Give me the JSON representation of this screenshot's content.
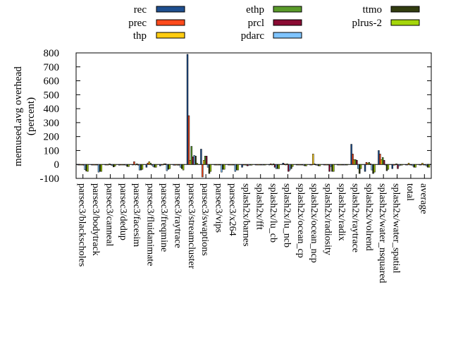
{
  "chart_data": {
    "type": "bar",
    "title": "",
    "xlabel": "",
    "ylabel": "memused.avg overhead",
    "ylabel2": "(percent)",
    "ylim": [
      -100,
      800
    ],
    "yticks": [
      -100,
      0,
      100,
      200,
      300,
      400,
      500,
      600,
      700,
      800
    ],
    "legend_position": "top",
    "categories": [
      "parsec3/blackscholes",
      "parsec3/bodytrack",
      "parsec3/canneal",
      "parsec3/dedup",
      "parsec3/facesim",
      "parsec3/fluidanimate",
      "parsec3/freqmine",
      "parsec3/raytrace",
      "parsec3/streamcluster",
      "parsec3/swaptions",
      "parsec3/vips",
      "parsec3/x264",
      "splash2x/barnes",
      "splash2x/fft",
      "splash2x/lu_cb",
      "splash2x/lu_ncb",
      "splash2x/ocean_cp",
      "splash2x/ocean_ncp",
      "splash2x/radiosity",
      "splash2x/radix",
      "splash2x/raytrace",
      "splash2x/volrend",
      "splash2x/water_nsquared",
      "splash2x/water_spatial",
      "total",
      "average"
    ],
    "series": [
      {
        "name": "rec",
        "color": "#1f4f8f",
        "values": [
          0,
          0,
          -3,
          -5,
          0,
          -20,
          -10,
          -5,
          790,
          110,
          0,
          0,
          -20,
          0,
          0,
          10,
          0,
          0,
          -3,
          -3,
          145,
          -50,
          100,
          -30,
          0,
          0
        ]
      },
      {
        "name": "prec",
        "color": "#ff4a1c",
        "values": [
          -2,
          0,
          0,
          0,
          20,
          10,
          0,
          -5,
          350,
          -90,
          0,
          0,
          0,
          0,
          5,
          5,
          0,
          0,
          -3,
          0,
          75,
          15,
          75,
          -5,
          0,
          0
        ]
      },
      {
        "name": "thp",
        "color": "#ffcc11",
        "values": [
          0,
          0,
          0,
          0,
          0,
          20,
          0,
          0,
          30,
          30,
          0,
          0,
          0,
          0,
          0,
          0,
          0,
          75,
          0,
          0,
          35,
          10,
          35,
          0,
          10,
          10
        ]
      },
      {
        "name": "ethp",
        "color": "#5a9b2a",
        "values": [
          -3,
          0,
          5,
          -3,
          5,
          10,
          5,
          -5,
          130,
          60,
          0,
          0,
          -5,
          0,
          5,
          5,
          -3,
          5,
          0,
          0,
          35,
          15,
          50,
          5,
          0,
          0
        ]
      },
      {
        "name": "prcl",
        "color": "#8a0b33",
        "values": [
          -5,
          0,
          0,
          0,
          -5,
          -5,
          5,
          -5,
          55,
          60,
          0,
          0,
          -10,
          0,
          -20,
          -50,
          -3,
          0,
          -50,
          0,
          30,
          5,
          30,
          -30,
          0,
          0
        ]
      },
      {
        "name": "pdarc",
        "color": "#7fc4ff",
        "values": [
          -37,
          -55,
          -8,
          -5,
          -40,
          -15,
          -45,
          -20,
          65,
          -20,
          -55,
          -50,
          -5,
          0,
          -30,
          -40,
          -5,
          -5,
          -15,
          0,
          -30,
          -40,
          0,
          -10,
          -10,
          -10
        ]
      },
      {
        "name": "ttmo",
        "color": "#323d10",
        "values": [
          -47,
          -50,
          -18,
          -15,
          -40,
          -20,
          -35,
          -30,
          60,
          -65,
          -35,
          -40,
          -5,
          0,
          -30,
          -30,
          -10,
          -10,
          -50,
          0,
          -65,
          -65,
          -45,
          -5,
          -20,
          -20
        ]
      },
      {
        "name": "plrus-2",
        "color": "#a5d60a",
        "values": [
          -50,
          -50,
          -12,
          -15,
          -35,
          -20,
          -30,
          -40,
          10,
          -50,
          -35,
          -40,
          -5,
          0,
          -30,
          -15,
          -10,
          -10,
          -50,
          0,
          -30,
          -55,
          -35,
          -5,
          -20,
          -20
        ]
      }
    ]
  }
}
